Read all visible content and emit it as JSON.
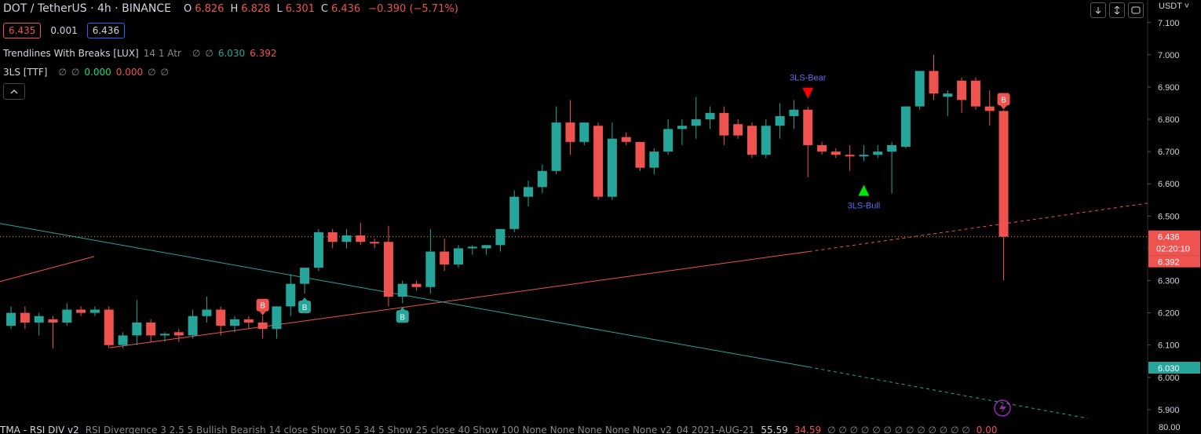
{
  "header": {
    "symbol": "DOT / TetherUS · 4h · BINANCE",
    "ohlc": [
      {
        "label": "O",
        "value": "6.826"
      },
      {
        "label": "H",
        "value": "6.828"
      },
      {
        "label": "L",
        "value": "6.301"
      },
      {
        "label": "C",
        "value": "6.436"
      }
    ],
    "change": "−0.390 (−5.71%)",
    "bid": "6.435",
    "spread": "0.001",
    "ask": "6.436",
    "currency": "USDT"
  },
  "indicators": [
    {
      "name": "Trendlines With Breaks [LUX]",
      "params": "14 1 Atr",
      "items": [
        {
          "text": "∅",
          "color": "#868993"
        },
        {
          "text": "∅",
          "color": "#868993"
        },
        {
          "text": "6.030",
          "color": "#26a69a"
        },
        {
          "text": "6.392",
          "color": "#ef5350"
        }
      ]
    },
    {
      "name": "3LS [TTF]",
      "params": null,
      "items": [
        {
          "text": "∅",
          "color": "#868993"
        },
        {
          "text": "∅",
          "color": "#868993"
        },
        {
          "text": "0.000",
          "color": "#00e676"
        },
        {
          "text": "0.000",
          "color": "#ef5350"
        },
        {
          "text": "∅",
          "color": "#868993"
        },
        {
          "text": "∅",
          "color": "#868993"
        }
      ]
    }
  ],
  "bottom_pane": {
    "name": "TMA - RSI DIV v2",
    "params": "RSI Divergence 3 2.5 5 Bullish Bearish 14 close Show 50 5 34 5 Show 25 close 40 Show 100 None None None None None v2_04 2021-AUG-21",
    "items": [
      {
        "text": "55.59",
        "color": "#d1d4dc"
      },
      {
        "text": "34.59",
        "color": "#ef5350"
      },
      {
        "text": "∅ ∅ ∅ ∅ ∅ ∅ ∅ ∅ ∅ ∅ ∅ ∅ ∅",
        "color": "#868993"
      },
      {
        "text": "0.00",
        "color": "#ef5350"
      }
    ],
    "axis_label": "80.00"
  },
  "chart_data": {
    "type": "candlestick",
    "up_color": "#26a69a",
    "down_color": "#ef5350",
    "open": [
      6.16,
      6.2,
      6.17,
      6.18,
      6.17,
      6.21,
      6.2,
      6.21,
      6.1,
      6.13,
      6.17,
      6.13,
      6.14,
      6.13,
      6.19,
      6.21,
      6.16,
      6.18,
      6.17,
      6.15,
      6.22,
      6.29,
      6.34,
      6.45,
      6.42,
      6.44,
      6.42,
      6.42,
      6.25,
      6.29,
      6.28,
      6.39,
      6.35,
      6.4,
      6.4,
      6.41,
      6.46,
      6.56,
      6.59,
      6.64,
      6.79,
      6.73,
      6.78,
      6.56,
      6.745,
      6.73,
      6.65,
      6.7,
      6.77,
      6.78,
      6.8,
      6.82,
      6.785,
      6.78,
      6.69,
      6.78,
      6.81,
      6.83,
      6.72,
      6.7,
      6.69,
      6.685,
      6.69,
      6.7,
      6.715,
      6.84,
      6.95,
      6.87,
      6.92,
      6.92,
      6.84,
      6.826
    ],
    "high": [
      6.22,
      6.22,
      6.2,
      6.19,
      6.23,
      6.22,
      6.22,
      6.22,
      6.14,
      6.24,
      6.18,
      6.14,
      6.15,
      6.21,
      6.25,
      6.22,
      6.19,
      6.19,
      6.19,
      6.22,
      6.32,
      6.34,
      6.46,
      6.46,
      6.46,
      6.48,
      6.43,
      6.47,
      6.3,
      6.3,
      6.46,
      6.43,
      6.41,
      6.41,
      6.41,
      6.46,
      6.58,
      6.61,
      6.66,
      6.84,
      6.86,
      6.79,
      6.79,
      6.79,
      6.76,
      6.73,
      6.71,
      6.8,
      6.8,
      6.87,
      6.84,
      6.84,
      6.8,
      6.79,
      6.8,
      6.85,
      6.86,
      6.84,
      6.73,
      6.71,
      6.72,
      6.72,
      6.72,
      6.73,
      6.84,
      6.95,
      7.0,
      6.89,
      6.93,
      6.93,
      6.89,
      6.828
    ],
    "low": [
      6.15,
      6.15,
      6.13,
      6.09,
      6.16,
      6.19,
      6.19,
      6.09,
      6.09,
      6.1,
      6.11,
      6.11,
      6.11,
      6.12,
      6.17,
      6.13,
      6.14,
      6.15,
      6.12,
      6.12,
      6.19,
      6.26,
      6.33,
      6.4,
      6.4,
      6.41,
      6.4,
      6.22,
      6.23,
      6.27,
      6.26,
      6.33,
      6.34,
      6.38,
      6.38,
      6.39,
      6.45,
      6.53,
      6.57,
      6.63,
      6.69,
      6.72,
      6.55,
      6.55,
      6.72,
      6.64,
      6.63,
      6.69,
      6.72,
      6.74,
      6.77,
      6.72,
      6.74,
      6.68,
      6.68,
      6.74,
      6.77,
      6.62,
      6.69,
      6.68,
      6.64,
      6.67,
      6.68,
      6.57,
      6.71,
      6.83,
      6.86,
      6.81,
      6.82,
      6.83,
      6.78,
      6.301
    ],
    "close": [
      6.2,
      6.17,
      6.19,
      6.17,
      6.21,
      6.2,
      6.21,
      6.1,
      6.13,
      6.17,
      6.13,
      6.135,
      6.13,
      6.19,
      6.21,
      6.16,
      6.18,
      6.17,
      6.15,
      6.22,
      6.29,
      6.34,
      6.45,
      6.42,
      6.44,
      6.42,
      6.415,
      6.25,
      6.29,
      6.28,
      6.39,
      6.35,
      6.4,
      6.405,
      6.41,
      6.46,
      6.56,
      6.59,
      6.64,
      6.79,
      6.73,
      6.79,
      6.56,
      6.74,
      6.73,
      6.65,
      6.7,
      6.77,
      6.78,
      6.8,
      6.82,
      6.75,
      6.75,
      6.69,
      6.78,
      6.81,
      6.83,
      6.72,
      6.7,
      6.69,
      6.685,
      6.69,
      6.7,
      6.72,
      6.84,
      6.95,
      6.88,
      6.88,
      6.86,
      6.84,
      6.826,
      6.436
    ],
    "xlim": [
      -0.79,
      81.3
    ],
    "ylim": [
      5.856,
      7.17
    ],
    "yticks": [
      {
        "value": 5.9,
        "label": "5.900"
      },
      {
        "value": 6.0,
        "label": "6.000"
      },
      {
        "value": 6.1,
        "label": "6.100"
      },
      {
        "value": 6.2,
        "label": "6.200"
      },
      {
        "value": 6.3,
        "label": "6.300"
      },
      {
        "value": 6.4,
        "label": "6.400"
      },
      {
        "value": 6.5,
        "label": "6.500"
      },
      {
        "value": 6.6,
        "label": "6.600"
      },
      {
        "value": 6.7,
        "label": "6.700"
      },
      {
        "value": 6.8,
        "label": "6.800"
      },
      {
        "value": 6.9,
        "label": "6.900"
      },
      {
        "value": 7.0,
        "label": "7.000"
      },
      {
        "value": 7.1,
        "label": "7.100"
      }
    ],
    "current_price_line": {
      "value": 6.436,
      "color": "#f7931a"
    },
    "price_labels": [
      {
        "value": 6.436,
        "label": "6.436",
        "sub": "02:20:10",
        "color": "#ef5350"
      },
      {
        "value": 6.392,
        "label": "6.392",
        "color": "#ef5350"
      },
      {
        "value": 6.03,
        "label": "6.030",
        "color": "#26a69a"
      }
    ],
    "trendlines": [
      {
        "color": "#ef5350",
        "start": [
          -0.79,
          6.297
        ],
        "break": [
          5.96,
          6.375
        ],
        "end": [
          5.96,
          6.375
        ]
      },
      {
        "color": "#ef5350",
        "start": [
          7.08,
          6.092
        ],
        "break": [
          57.08,
          6.39
        ],
        "end": [
          81.3,
          6.54
        ]
      },
      {
        "color": "#26a69a",
        "start": [
          -0.79,
          6.477
        ],
        "break": [
          57.08,
          6.032
        ],
        "end": [
          77.0,
          5.873
        ]
      }
    ],
    "markers": [
      {
        "index": 18,
        "side": "above",
        "shape": "bubble",
        "label": "B",
        "color": "#ef5350"
      },
      {
        "index": 21,
        "side": "below",
        "shape": "bubble",
        "label": "B",
        "color": "#26a69a"
      },
      {
        "index": 28,
        "side": "below",
        "shape": "bubble",
        "label": "B",
        "color": "#26a69a"
      },
      {
        "index": 71,
        "side": "above",
        "shape": "bubble",
        "label": "B",
        "color": "#ef5350"
      },
      {
        "index": 57,
        "side": "above",
        "shape": "triangle",
        "label": "3LS-Bear",
        "color": "#ff0000",
        "label_color": "#5b6cf0"
      },
      {
        "index": 61,
        "side": "below",
        "shape": "triangle",
        "label": "3LS-Bull",
        "color": "#00e600",
        "label_color": "#5b6cf0"
      }
    ]
  }
}
